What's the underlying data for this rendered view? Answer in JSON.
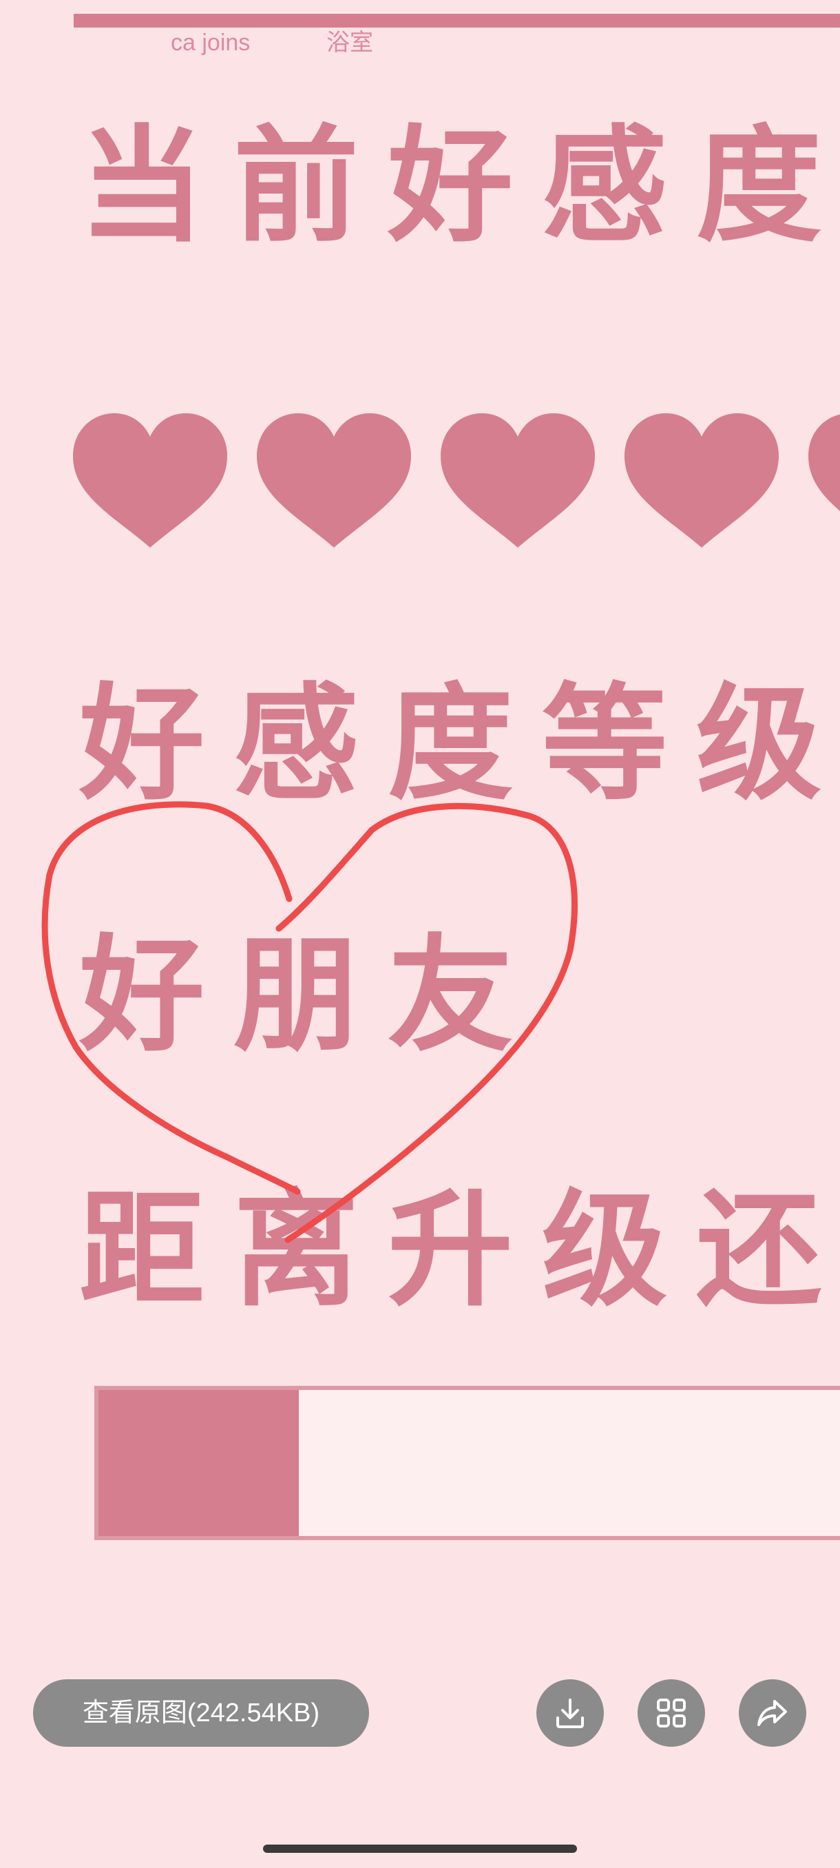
{
  "image": {
    "caption_left": "ca joins",
    "caption_right": "浴室",
    "line1": "当前好感度",
    "line2": "好感度等级：",
    "line3": "好朋友",
    "line4": "距离升级还",
    "hearts_visible": 4,
    "progress_fraction": 0.27,
    "colors": {
      "background": "#fbe3e6",
      "accent_pink": "#d57e8f",
      "annotation_red": "#ee4b4b"
    }
  },
  "toolbar": {
    "view_original_label": "查看原图(242.54KB)",
    "download_icon": "download-icon",
    "grid_icon": "grid-icon",
    "share_icon": "share-icon",
    "button_color": "#8b8b8b"
  }
}
